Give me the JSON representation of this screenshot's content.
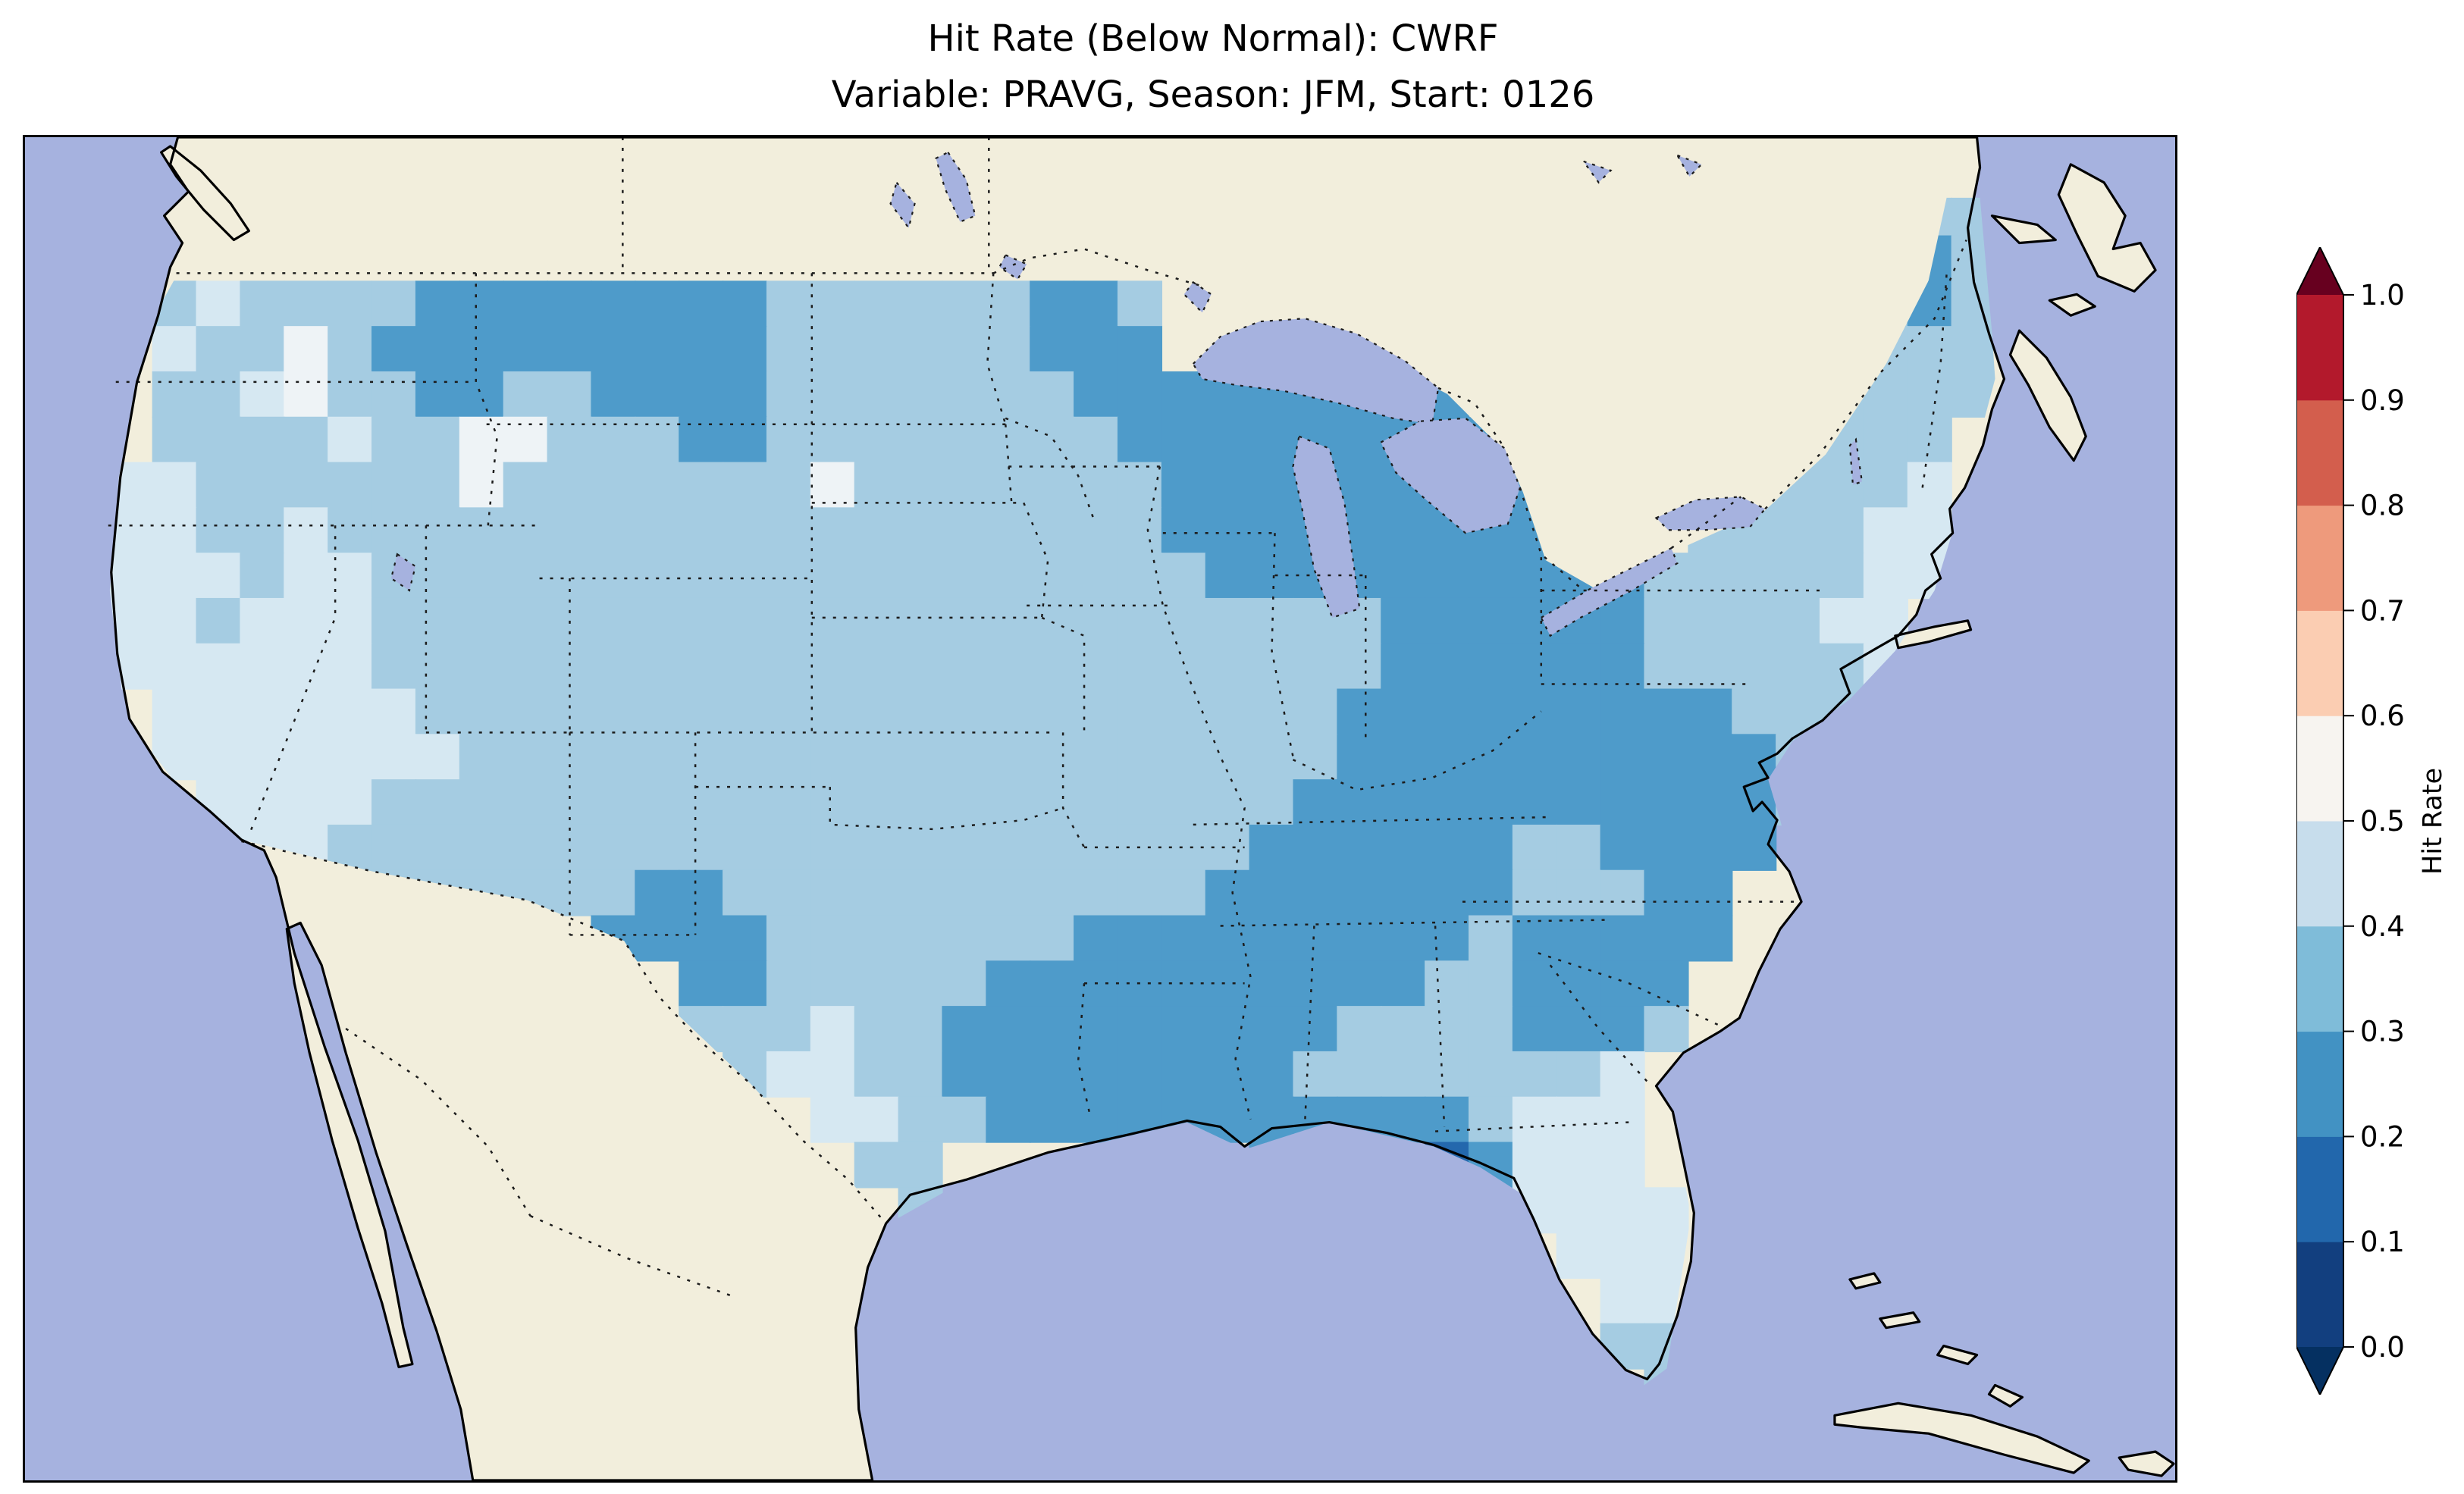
{
  "figure": {
    "title_line1": "Hit Rate (Below Normal): CWRF",
    "title_line2": "Variable: PRAVG, Season: JFM, Start: 0126"
  },
  "colorbar": {
    "label": "Hit Rate",
    "tick_labels": [
      "0.0",
      "0.1",
      "0.2",
      "0.3",
      "0.4",
      "0.5",
      "0.6",
      "0.7",
      "0.8",
      "0.9",
      "1.0"
    ],
    "segment_colors_bottom_to_top": [
      "#123f7f",
      "#2267ac",
      "#4292c3",
      "#7fbcd9",
      "#c7ddec",
      "#f7f4f0",
      "#fbcdb2",
      "#ee9a7c",
      "#d35e4d",
      "#b3192c"
    ],
    "extend_low_color": "#053061",
    "extend_high_color": "#67001f",
    "outline_color": "#000000"
  },
  "map": {
    "colors": {
      "ocean": "#a6b2df",
      "land": "#f2eedc",
      "lake": "#a6b2df",
      "coastline": "#000000",
      "state_border": "#1c1c1c"
    }
  },
  "chart_data": {
    "type": "heatmap",
    "title": "Hit Rate (Below Normal): CWRF",
    "subtitle": "Variable: PRAVG, Season: JFM, Start: 0126",
    "metric": "Hit Rate (Below Normal)",
    "model": "CWRF",
    "variable": "PRAVG",
    "season": "JFM",
    "start": "0126",
    "colorbar_label": "Hit Rate",
    "levels": [
      0.0,
      0.1,
      0.2,
      0.3,
      0.4,
      0.5,
      0.6,
      0.7,
      0.8,
      0.9,
      1.0
    ],
    "colorbar_extend": "both",
    "region": "Continental United States",
    "level_colors": {
      "1": "#2468ad",
      "2": "#4e9bca",
      "3": "#a5cce2",
      "4": "#d6e8f2",
      "5": "#eef3f6"
    },
    "level_value_ranges": {
      "1": "0.1-0.2",
      "2": "0.2-0.3",
      "3": "0.3-0.4",
      "4": "0.4-0.5",
      "5": "0.5-0.6"
    },
    "grid": {
      "cols": 43,
      "rows": 28,
      "no_data_char": ".",
      "rows_data": [
        "...........................................",
        ".........................................33",
        "........................................223",
        ".34333322222222333333223................323",
        ".43353222222222333333222................333",
        ".334533223322223333333222222222........3333",
        ".3333433553332233333333222222222....333333.",
        "443333335333333353333333222222222...333334.",
        "443343333333333333333333222222222...333344.",
        "444344333333333333333333322222222223333344.",
        "44344433333333333333333333333222222333344..",
        "44444433333333333333333333333222222333334..",
        ".444444333333333333333333333222222222333...",
        ".444444433333333333333333333222222222233....",
        "..4444333333333333333333333222222222223....",
        "..444333333333333333333333222222332222.....",
        ".....33333332233333333333222222233322......",
        "...........22223333333222222222322222......",
        ".............22333332222222222332222.......",
        ".............33343322222222233332223.......",
        "..............344332222222233333334........",
        "................4433222222222223444........",
        ".................33.......2...12444........",
        "..................3.............4444.......",
        ".................................444.......",
        "..................................44.......",
        "..................................33.......",
        "...................................3......."
      ]
    }
  }
}
